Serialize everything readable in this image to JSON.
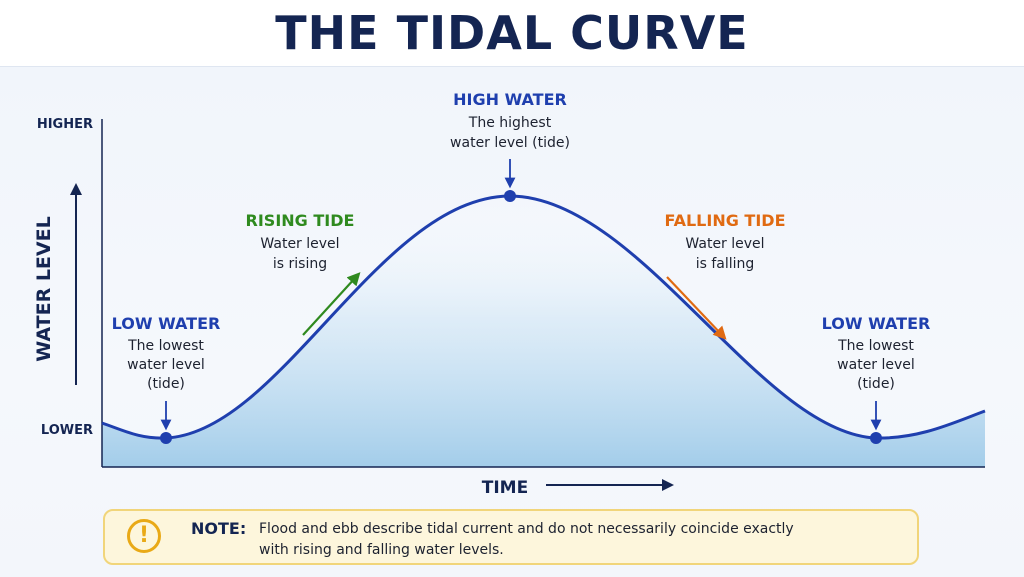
{
  "title": "THE TIDAL CURVE",
  "axes": {
    "y_label": "WATER LEVEL",
    "y_high": "HIGHER",
    "y_low": "LOWER",
    "x_label": "TIME"
  },
  "labels": {
    "low_left": {
      "heading": "LOW WATER",
      "line1": "The lowest",
      "line2": "water level",
      "line3": "(tide)"
    },
    "high": {
      "heading": "HIGH WATER",
      "line1": "The highest",
      "line2": "water level (tide)"
    },
    "rising": {
      "heading": "RISING TIDE",
      "line1": "Water level",
      "line2": "is rising"
    },
    "falling": {
      "heading": "FALLING TIDE",
      "line1": "Water level",
      "line2": "is falling"
    },
    "low_right": {
      "heading": "LOW WATER",
      "line1": "The lowest",
      "line2": "water level",
      "line3": "(tide)"
    }
  },
  "note": {
    "icon": "exclamation-icon",
    "label": "NOTE:",
    "line1": "Flood and ebb describe tidal current and do not necessarily coincide exactly",
    "line2": "with rising and falling water levels."
  },
  "colors": {
    "title": "#142552",
    "curve": "#1f3fae",
    "rising": "#2f8a1f",
    "falling": "#e06a12",
    "low_high_heading": "#1f3fae",
    "note_background": "#fdf6dc",
    "note_border": "#f1d57a",
    "note_icon": "#e9a916"
  }
}
